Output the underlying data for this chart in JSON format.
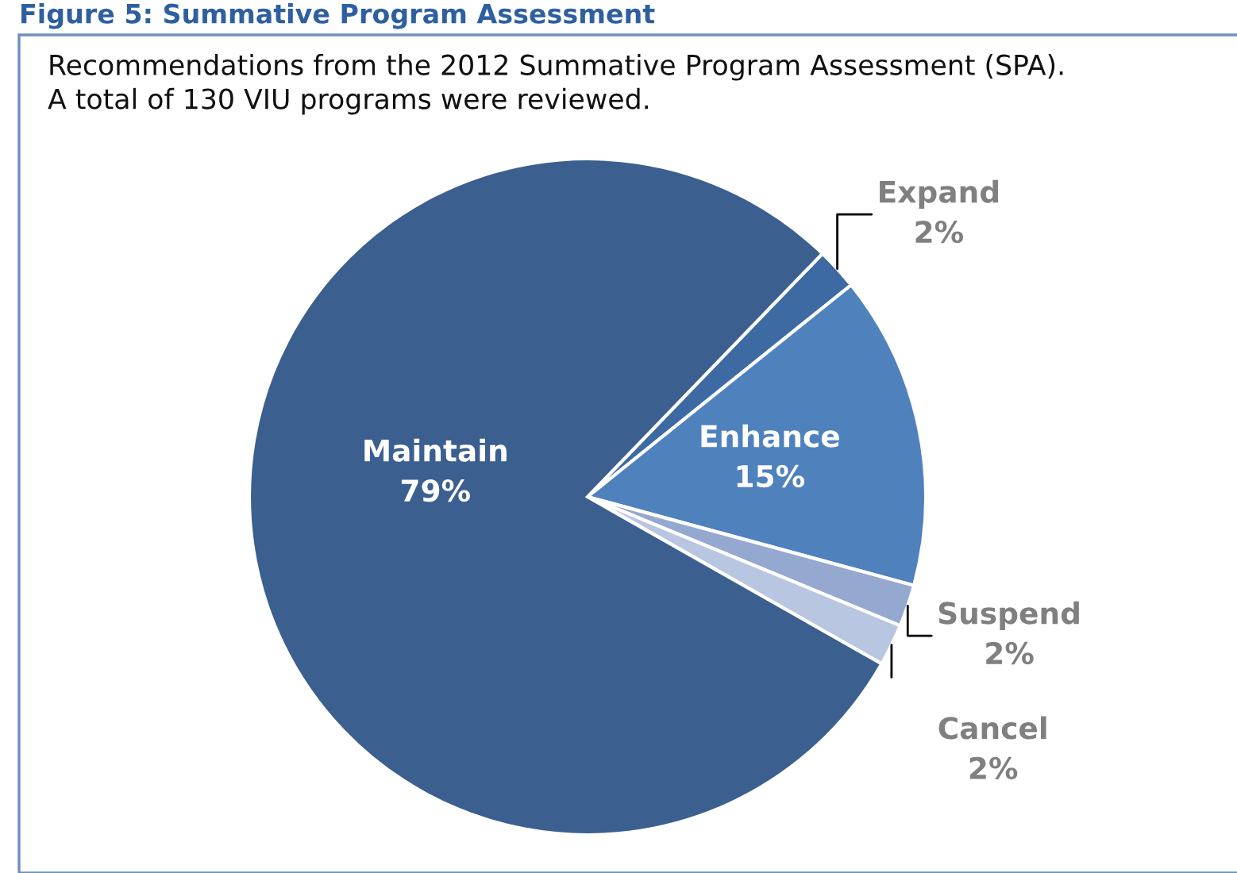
{
  "chart_data": {
    "type": "pie",
    "title": "Figure 5: Summative Program Assessment",
    "subtitle": "Recommendations from the 2012 Summative Program Assessment (SPA).\nA total of 130 VIU programs were reviewed.",
    "categories": [
      "Expand",
      "Enhance",
      "Suspend",
      "Cancel",
      "Maintain"
    ],
    "values": [
      2,
      15,
      2,
      2,
      79
    ],
    "value_labels": [
      "2%",
      "15%",
      "2%",
      "2%",
      "79%"
    ],
    "colors": [
      "#3d6aa2",
      "#4f81bd",
      "#95a8d0",
      "#b9c6e2",
      "#3b5f8f"
    ],
    "legend": false
  }
}
